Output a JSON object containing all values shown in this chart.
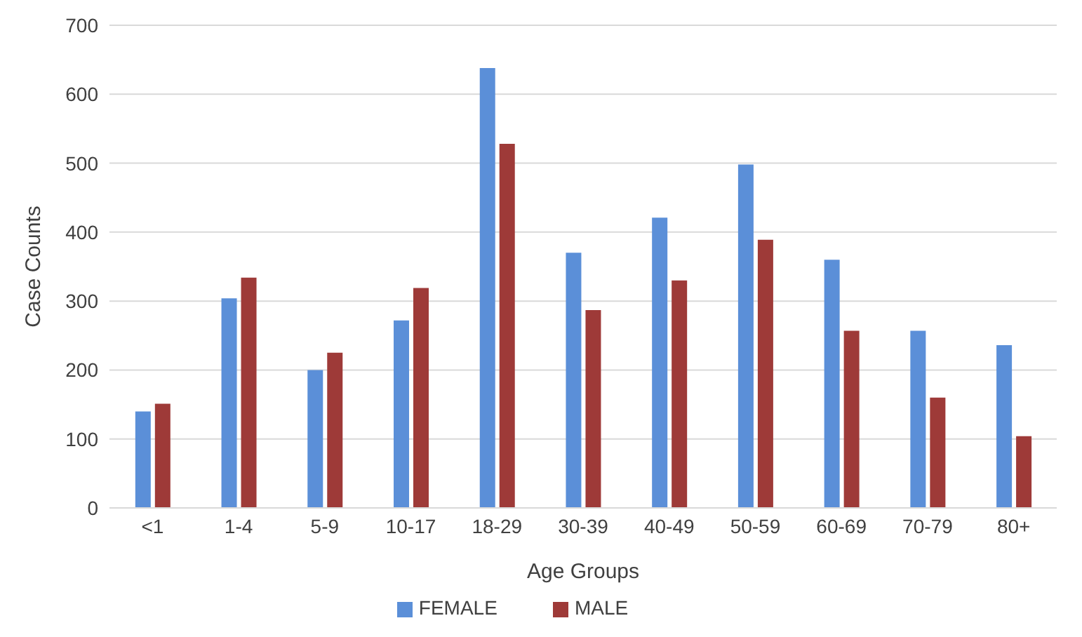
{
  "chart_data": {
    "type": "bar",
    "xlabel": "Age Groups",
    "ylabel": "Case Counts",
    "categories": [
      "<1",
      "1-4",
      "5-9",
      "10-17",
      "18-29",
      "30-39",
      "40-49",
      "50-59",
      "60-69",
      "70-79",
      "80+"
    ],
    "series": [
      {
        "name": "FEMALE",
        "color": "#5b8fd8",
        "values": [
          140,
          304,
          200,
          272,
          638,
          370,
          421,
          498,
          360,
          257,
          236
        ]
      },
      {
        "name": "MALE",
        "color": "#9e3a38",
        "values": [
          151,
          334,
          225,
          319,
          528,
          287,
          330,
          389,
          257,
          160,
          104
        ]
      }
    ],
    "ylim": [
      0,
      700
    ],
    "yticks": [
      0,
      100,
      200,
      300,
      400,
      500,
      600,
      700
    ],
    "grid": "y",
    "legend": "bottom"
  }
}
